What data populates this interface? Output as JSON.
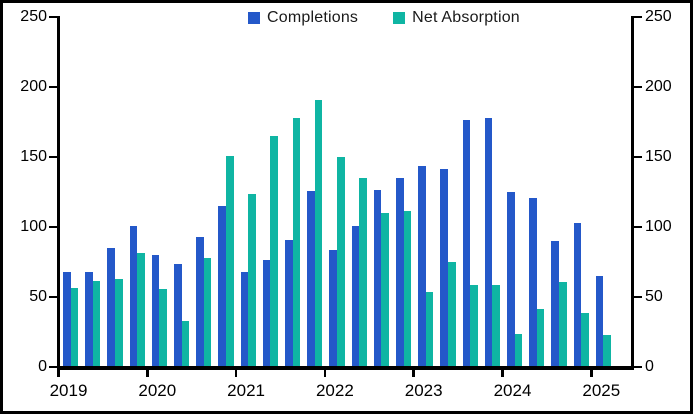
{
  "chart_data": {
    "type": "bar",
    "title": "",
    "categories": [
      "2019 Q1",
      "2019 Q2",
      "2019 Q3",
      "2019 Q4",
      "2020 Q1",
      "2020 Q2",
      "2020 Q3",
      "2020 Q4",
      "2021 Q1",
      "2021 Q2",
      "2021 Q3",
      "2021 Q4",
      "2022 Q1",
      "2022 Q2",
      "2022 Q3",
      "2022 Q4",
      "2023 Q1",
      "2023 Q2",
      "2023 Q3",
      "2023 Q4",
      "2024 Q1",
      "2024 Q2",
      "2024 Q3",
      "2024 Q4",
      "2025 Q1"
    ],
    "series": [
      {
        "name": "Completions",
        "color": "#2458C9",
        "values": [
          67,
          67,
          84,
          100,
          79,
          73,
          92,
          114,
          67,
          76,
          90,
          125,
          83,
          100,
          126,
          134,
          143,
          141,
          176,
          177,
          124,
          120,
          89,
          102,
          64
        ]
      },
      {
        "name": "Net Absorption",
        "color": "#0FB5A3",
        "values": [
          56,
          61,
          62,
          81,
          55,
          32,
          77,
          150,
          123,
          164,
          177,
          190,
          149,
          134,
          109,
          111,
          53,
          74,
          58,
          58,
          23,
          41,
          60,
          38,
          22
        ]
      }
    ],
    "xlabel": "",
    "ylabel": "",
    "x_tick_labels": [
      "2019",
      "2020",
      "2021",
      "2022",
      "2023",
      "2024",
      "2025"
    ],
    "y_ticks": [
      0,
      50,
      100,
      150,
      200,
      250
    ],
    "ylim": [
      0,
      250
    ],
    "y_axis_sides": "both",
    "grid": false,
    "legend_position": "top-center",
    "axis_color": "#000000",
    "text_color": "#1a1a1a"
  }
}
